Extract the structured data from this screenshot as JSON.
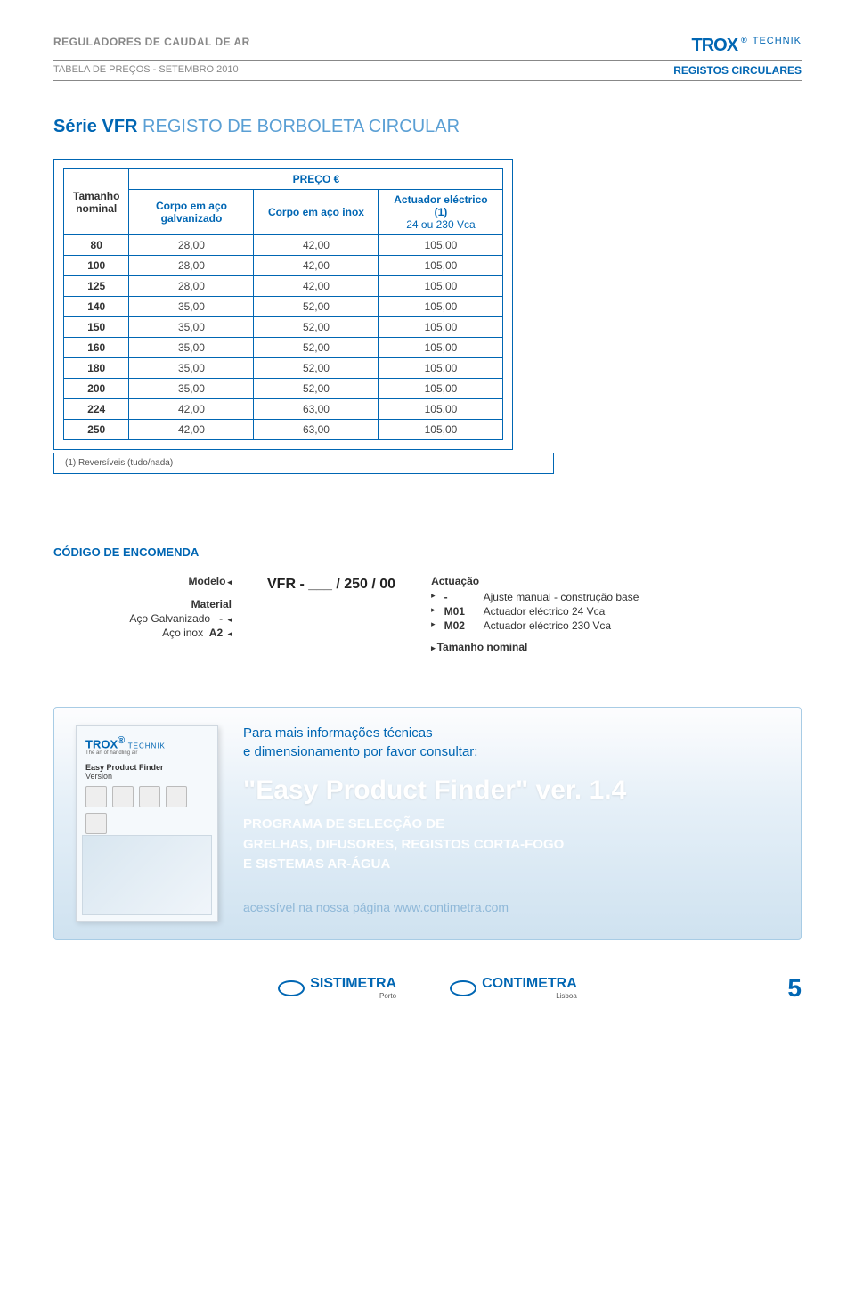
{
  "header": {
    "category": "REGULADORES DE CAUDAL DE AR",
    "brand_main": "TROX",
    "brand_reg": "®",
    "brand_sub": "TECHNIK",
    "subtitle_left": "TABELA DE PREÇOS - SETEMBRO 2010",
    "subtitle_right": "REGISTOS CIRCULARES"
  },
  "section": {
    "prefix": "Série ",
    "code": "VFR",
    "suffix": " REGISTO DE BORBOLETA CIRCULAR"
  },
  "table": {
    "col_nominal": "Tamanho nominal",
    "col_group": "PREÇO €",
    "col1": "Corpo em aço galvanizado",
    "col2": "Corpo em aço inox",
    "col3_line1": "Actuador eléctrico (1)",
    "col3_line2": "24 ou 230 Vca",
    "rows": [
      {
        "n": "80",
        "a": "28,00",
        "b": "42,00",
        "c": "105,00"
      },
      {
        "n": "100",
        "a": "28,00",
        "b": "42,00",
        "c": "105,00"
      },
      {
        "n": "125",
        "a": "28,00",
        "b": "42,00",
        "c": "105,00"
      },
      {
        "n": "140",
        "a": "35,00",
        "b": "52,00",
        "c": "105,00"
      },
      {
        "n": "150",
        "a": "35,00",
        "b": "52,00",
        "c": "105,00"
      },
      {
        "n": "160",
        "a": "35,00",
        "b": "52,00",
        "c": "105,00"
      },
      {
        "n": "180",
        "a": "35,00",
        "b": "52,00",
        "c": "105,00"
      },
      {
        "n": "200",
        "a": "35,00",
        "b": "52,00",
        "c": "105,00"
      },
      {
        "n": "224",
        "a": "42,00",
        "b": "63,00",
        "c": "105,00"
      },
      {
        "n": "250",
        "a": "42,00",
        "b": "63,00",
        "c": "105,00"
      }
    ],
    "footnote": "(1) Reversíveis (tudo/nada)"
  },
  "order": {
    "title": "CÓDIGO DE ENCOMENDA",
    "center": "VFR - ___ / 250 / 00",
    "left": {
      "modelo": "Modelo",
      "material": "Material",
      "galv": "Aço Galvanizado",
      "galv_code": "-",
      "inox": "Aço inox",
      "inox_code": "A2"
    },
    "right": {
      "actuacao": "Actuação",
      "r1_code": "-",
      "r1_desc": "Ajuste manual - construção base",
      "r2_code": "M01",
      "r2_desc": "Actuador eléctrico 24 Vca",
      "r3_code": "M02",
      "r3_desc": "Actuador eléctrico 230 Vca",
      "tamanho": "Tamanho nominal"
    }
  },
  "promo": {
    "intro1": "Para mais informações técnicas",
    "intro2": "e dimensionamento por favor consultar:",
    "title": "\"Easy Product Finder\" ver. 1.4",
    "sub1": "PROGRAMA DE SELECÇÃO DE",
    "sub2": "GRELHAS, DIFUSORES, REGISTOS CORTA-FOGO",
    "sub3": "E SISTEMAS AR-ÁGUA",
    "link": "acessível na nossa página www.contimetra.com",
    "card_finder": "Easy Product Finder",
    "card_version": "Version",
    "card_art": "The art of handling air"
  },
  "footer": {
    "logo1": "SISTIMETRA",
    "city1": "Porto",
    "logo2": "CONTIMETRA",
    "city2": "Lisboa",
    "page": "5"
  },
  "colors": {
    "primary": "#0066b3",
    "light_primary": "#5a9fd4",
    "grey": "#888888",
    "promo_bg_top": "#fdfdfe",
    "promo_bg_bottom": "#cfe2f0",
    "white": "#ffffff"
  }
}
